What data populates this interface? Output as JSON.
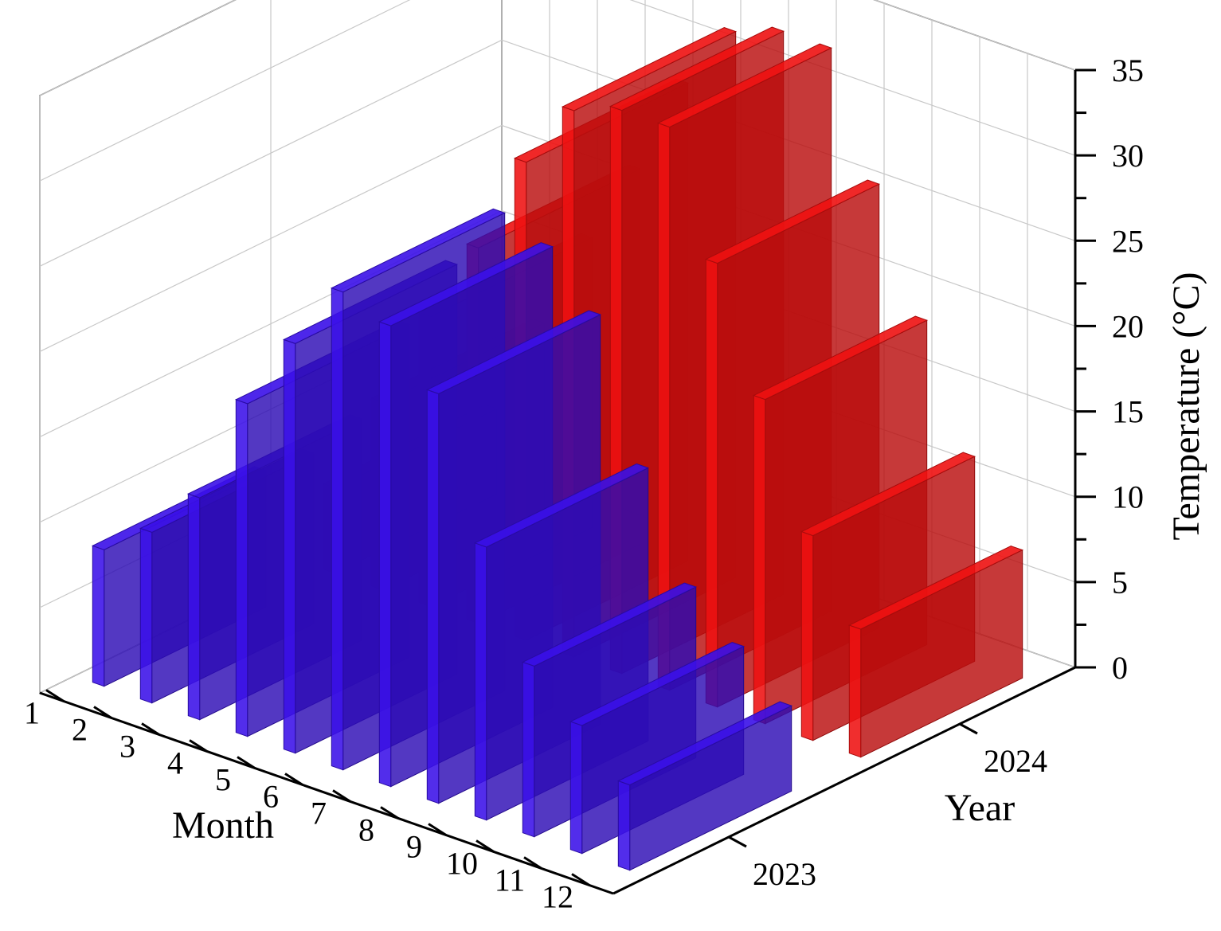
{
  "chart_data": {
    "type": "bar",
    "subtype": "3d-bar",
    "title": "",
    "x": {
      "label": "Month",
      "categories": [
        "1",
        "2",
        "3",
        "4",
        "5",
        "6",
        "7",
        "8",
        "9",
        "10",
        "11",
        "12"
      ]
    },
    "y": {
      "label": "Year",
      "categories": [
        "2023",
        "2024"
      ]
    },
    "z": {
      "label": "Temperature (°C)",
      "range": [
        0,
        35
      ],
      "ticks": [
        "0",
        "5",
        "10",
        "15",
        "20",
        "25",
        "30",
        "35"
      ]
    },
    "series": [
      {
        "year": "2023",
        "color": "#3a10e8",
        "values": [
          8,
          10,
          13,
          19.5,
          24,
          28,
          27,
          24,
          16,
          10,
          7.5,
          5
        ]
      },
      {
        "year": "2024",
        "color": "#ee1111",
        "values": [
          5,
          11,
          17,
          22,
          28,
          32,
          33,
          33,
          26,
          19,
          12,
          7.5
        ]
      }
    ],
    "grid": true,
    "legend": "none"
  }
}
